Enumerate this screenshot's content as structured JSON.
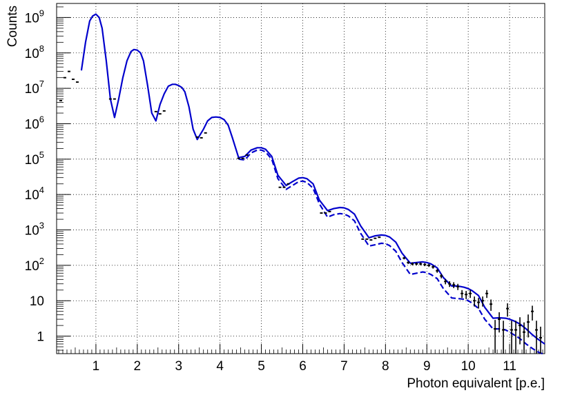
{
  "chart_data": {
    "type": "line",
    "title": "",
    "xlabel": "Photon equivalent [p.e.]",
    "ylabel": "Counts",
    "x_scale": "linear",
    "y_scale": "log",
    "xlim": [
      0.05,
      11.85
    ],
    "ylim": [
      0.32,
      2500000000.0
    ],
    "grid": true,
    "legend": "none",
    "x_ticks": [
      {
        "value": 1,
        "label": "1"
      },
      {
        "value": 2,
        "label": "2"
      },
      {
        "value": 3,
        "label": "3"
      },
      {
        "value": 4,
        "label": "4"
      },
      {
        "value": 5,
        "label": "5"
      },
      {
        "value": 6,
        "label": "6"
      },
      {
        "value": 7,
        "label": "7"
      },
      {
        "value": 8,
        "label": "8"
      },
      {
        "value": 9,
        "label": "9"
      },
      {
        "value": 10,
        "label": "10"
      },
      {
        "value": 11,
        "label": "11"
      }
    ],
    "y_ticks": [
      {
        "value": 1,
        "base": "1",
        "exp": ""
      },
      {
        "value": 10,
        "base": "10",
        "exp": ""
      },
      {
        "value": 100,
        "base": "10",
        "exp": "2"
      },
      {
        "value": 1000,
        "base": "10",
        "exp": "3"
      },
      {
        "value": 10000,
        "base": "10",
        "exp": "4"
      },
      {
        "value": 100000,
        "base": "10",
        "exp": "5"
      },
      {
        "value": 1000000,
        "base": "10",
        "exp": "6"
      },
      {
        "value": 10000000,
        "base": "10",
        "exp": "7"
      },
      {
        "value": 100000000,
        "base": "10",
        "exp": "8"
      },
      {
        "value": 1000000000,
        "base": "10",
        "exp": "9"
      }
    ],
    "series": [
      {
        "kind": "data",
        "color": "#000000",
        "style": "markers-with-errorbars",
        "bin_width": 0.1,
        "x": [
          0.15,
          0.25,
          0.35,
          0.45,
          0.55,
          1.35,
          1.45,
          2.45,
          2.55,
          2.65,
          3.45,
          3.55,
          3.65,
          4.45,
          4.55,
          4.65,
          5.45,
          5.55,
          5.65,
          6.45,
          6.55,
          6.65,
          7.45,
          7.55,
          7.65,
          7.75,
          7.85,
          8.45,
          8.55,
          8.65,
          8.75,
          8.85,
          8.95,
          9.05,
          9.15,
          9.25,
          9.35,
          9.45,
          9.55,
          9.65,
          9.75,
          9.85,
          9.95,
          10.05,
          10.15,
          10.25,
          10.35,
          10.45,
          10.55,
          10.65,
          10.75,
          10.85,
          10.95,
          11.05,
          11.15,
          11.25,
          11.35,
          11.45,
          11.55,
          11.65,
          11.75
        ],
        "y": [
          4500000.0,
          20000000.0,
          30000000.0,
          18000000.0,
          15000000.0,
          5000000.0,
          5000000.0,
          2200000.0,
          1900000.0,
          2300000.0,
          420000.0,
          400000.0,
          550000.0,
          105000.0,
          105000.0,
          130000.0,
          16000.0,
          16000.0,
          20000.0,
          3000.0,
          3000.0,
          3300.0,
          550.0,
          550.0,
          520.0,
          580.0,
          620.0,
          160.0,
          120.0,
          110.0,
          110.0,
          110.0,
          105.0,
          100.0,
          90.0,
          70.0,
          50.0,
          35.0,
          30.0,
          28.0,
          25.0,
          16.0,
          15.0,
          16.0,
          10.0,
          9.0,
          10.0,
          16.0,
          8.0,
          1.6,
          3.0,
          1.5,
          6.0,
          1.5,
          1.5,
          2.0,
          1.3,
          2.5,
          5.0,
          1.5,
          0.9
        ]
      },
      {
        "kind": "fit",
        "color": "#0000cc",
        "style": "solid",
        "x": [
          0.65,
          0.75,
          0.85,
          0.92,
          1.0,
          1.08,
          1.15,
          1.25,
          1.35,
          1.45,
          1.55,
          1.65,
          1.75,
          1.85,
          1.92,
          2.0,
          2.08,
          2.15,
          2.25,
          2.35,
          2.45,
          2.55,
          2.65,
          2.75,
          2.85,
          2.92,
          3.0,
          3.08,
          3.15,
          3.25,
          3.35,
          3.45,
          3.6,
          3.7,
          3.8,
          3.9,
          4.0,
          4.1,
          4.2,
          4.3,
          4.45,
          4.6,
          4.75,
          4.9,
          5.0,
          5.1,
          5.25,
          5.4,
          5.6,
          5.75,
          5.9,
          6.0,
          6.1,
          6.25,
          6.4,
          6.6,
          6.75,
          6.9,
          7.0,
          7.1,
          7.25,
          7.4,
          7.6,
          7.75,
          7.9,
          8.0,
          8.1,
          8.25,
          8.4,
          8.6,
          8.75,
          8.9,
          9.0,
          9.1,
          9.25,
          9.4,
          9.6,
          9.75,
          9.9,
          10.0,
          10.1,
          10.25,
          10.4,
          10.6,
          10.75,
          10.9,
          11.0,
          11.1,
          11.25,
          11.4,
          11.55,
          11.7,
          11.85
        ],
        "y": [
          32000000.0,
          200000000.0,
          800000000.0,
          1100000000.0,
          1250000000.0,
          1000000000.0,
          500000000.0,
          60000000.0,
          5000000.0,
          1500000.0,
          5000000.0,
          20000000.0,
          60000000.0,
          110000000.0,
          125000000.0,
          120000000.0,
          100000000.0,
          60000000.0,
          12000000.0,
          2000000.0,
          1200000.0,
          3500000.0,
          7000000.0,
          11500000.0,
          13000000.0,
          13000000.0,
          12000000.0,
          10500000.0,
          8000000.0,
          3000000.0,
          700000.0,
          360000.0,
          700000.0,
          1200000.0,
          1500000.0,
          1550000.0,
          1500000.0,
          1300000.0,
          900000.0,
          400000.0,
          110000.0,
          120000.0,
          180000.0,
          210000.0,
          210000.0,
          190000.0,
          120000.0,
          35000.0,
          18000.0,
          23000.0,
          29000.0,
          30000.0,
          28000.0,
          20000.0,
          7000.0,
          3500.0,
          4000.0,
          4300.0,
          4200.0,
          3800.0,
          2800.0,
          1300.0,
          600.0,
          680.0,
          720.0,
          700.0,
          630.0,
          450.0,
          220.0,
          115.0,
          120.0,
          125.0,
          120.0,
          110.0,
          85.0,
          45.0,
          26.0,
          26.0,
          24.0,
          22.0,
          19.0,
          14.0,
          6.5,
          3.2,
          3.3,
          3.2,
          3.0,
          2.7,
          2.2,
          1.6,
          1.1,
          0.8,
          0.6
        ]
      },
      {
        "kind": "fit",
        "color": "#0000cc",
        "style": "dashed",
        "x": [
          4.45,
          4.6,
          4.75,
          4.9,
          5.0,
          5.1,
          5.25,
          5.4,
          5.6,
          5.75,
          5.9,
          6.0,
          6.1,
          6.25,
          6.4,
          6.6,
          6.75,
          6.9,
          7.0,
          7.1,
          7.25,
          7.4,
          7.6,
          7.75,
          7.9,
          8.0,
          8.1,
          8.25,
          8.4,
          8.6,
          8.75,
          8.9,
          9.0,
          9.1,
          9.25,
          9.4,
          9.6,
          9.75,
          9.9,
          10.0,
          10.1,
          10.25,
          10.4,
          10.6,
          10.75,
          10.9,
          11.0,
          11.1,
          11.25,
          11.4,
          11.55,
          11.7,
          11.85
        ],
        "y": [
          100000.0,
          95000.0,
          150000.0,
          180000.0,
          180000.0,
          160000.0,
          100000.0,
          28000.0,
          14000.0,
          18000.0,
          23000.0,
          24000.0,
          22000.0,
          15000.0,
          5500.0,
          2300.0,
          2700.0,
          2900.0,
          2800.0,
          2500.0,
          1800.0,
          800.0,
          350.0,
          380.0,
          420.0,
          410.0,
          360.0,
          250.0,
          120.0,
          55.0,
          60.0,
          65.0,
          62.0,
          55.0,
          42.0,
          22.0,
          12.0,
          11.5,
          11.0,
          10.0,
          8.5,
          6.0,
          3.0,
          1.6,
          1.6,
          1.5,
          1.3,
          1.1,
          0.85,
          0.6,
          0.45,
          0.35,
          0.3
        ]
      }
    ]
  }
}
